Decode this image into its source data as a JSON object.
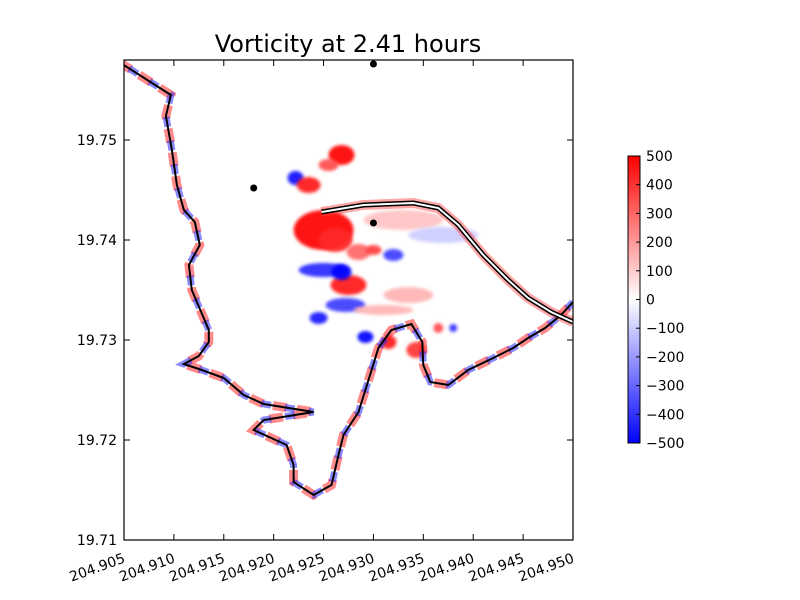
{
  "chart_data": {
    "type": "heatmap",
    "title": "Vorticity at 2.41 hours",
    "xlabel": "",
    "ylabel": "",
    "xlim": [
      204.905,
      204.95
    ],
    "ylim": [
      19.71,
      19.758
    ],
    "x_ticks": [
      "204.905",
      "204.910",
      "204.915",
      "204.920",
      "204.925",
      "204.930",
      "204.935",
      "204.940",
      "204.945",
      "204.950"
    ],
    "y_ticks": [
      "19.71",
      "19.72",
      "19.73",
      "19.74",
      "19.75"
    ],
    "x_tick_values": [
      204.905,
      204.91,
      204.915,
      204.92,
      204.925,
      204.93,
      204.935,
      204.94,
      204.945,
      204.95
    ],
    "y_tick_values": [
      19.71,
      19.72,
      19.73,
      19.74,
      19.75
    ],
    "colorbar": {
      "min": -500,
      "max": 500,
      "ticks": [
        "500",
        "400",
        "300",
        "200",
        "100",
        "0",
        "−100",
        "−200",
        "−300",
        "−400",
        "−500"
      ],
      "tick_values": [
        500,
        400,
        300,
        200,
        100,
        0,
        -100,
        -200,
        -300,
        -400,
        -500
      ],
      "colormap": [
        "#0000ff",
        "#ffffff",
        "#ff0000"
      ]
    },
    "gauge_points": [
      {
        "x": 204.93,
        "y": 19.7576
      },
      {
        "x": 204.918,
        "y": 19.7452
      },
      {
        "x": 204.93,
        "y": 19.7417
      }
    ],
    "shoreline": [
      [
        204.9045,
        19.7578
      ],
      [
        204.9097,
        19.7545
      ],
      [
        204.9092,
        19.7524
      ],
      [
        204.9098,
        19.749
      ],
      [
        204.9103,
        19.7455
      ],
      [
        204.911,
        19.743
      ],
      [
        204.9121,
        19.7418
      ],
      [
        204.9126,
        19.7395
      ],
      [
        204.9115,
        19.7375
      ],
      [
        204.9118,
        19.735
      ],
      [
        204.9135,
        19.731
      ],
      [
        204.9135,
        19.7298
      ],
      [
        204.9125,
        19.7284
      ],
      [
        204.911,
        19.7276
      ],
      [
        204.9128,
        19.727
      ],
      [
        204.915,
        19.7262
      ],
      [
        204.917,
        19.7245
      ],
      [
        204.919,
        19.7236
      ],
      [
        204.924,
        19.7228
      ],
      [
        204.919,
        19.722
      ],
      [
        204.918,
        19.721
      ],
      [
        204.9213,
        19.7195
      ],
      [
        204.922,
        19.7175
      ],
      [
        204.922,
        19.7158
      ],
      [
        204.924,
        19.7145
      ],
      [
        204.9258,
        19.7155
      ],
      [
        204.9265,
        19.7185
      ],
      [
        204.927,
        19.7205
      ],
      [
        204.9285,
        19.7228
      ],
      [
        204.9295,
        19.726
      ],
      [
        204.9305,
        19.7292
      ],
      [
        204.9318,
        19.731
      ],
      [
        204.9338,
        19.7316
      ],
      [
        204.9349,
        19.7298
      ],
      [
        204.935,
        19.7275
      ],
      [
        204.9357,
        19.7258
      ],
      [
        204.9375,
        19.7255
      ],
      [
        204.9395,
        19.727
      ],
      [
        204.942,
        19.7282
      ],
      [
        204.944,
        19.7292
      ],
      [
        204.9455,
        19.7302
      ],
      [
        204.9472,
        19.7312
      ],
      [
        204.9488,
        19.7325
      ],
      [
        204.95,
        19.7338
      ]
    ],
    "breakwater": [
      [
        204.9248,
        19.7428
      ],
      [
        204.929,
        19.7435
      ],
      [
        204.934,
        19.7437
      ],
      [
        204.9365,
        19.7432
      ],
      [
        204.9385,
        19.7415
      ],
      [
        204.941,
        19.7385
      ],
      [
        204.9435,
        19.736
      ],
      [
        204.9455,
        19.7342
      ],
      [
        204.9478,
        19.7328
      ],
      [
        204.95,
        19.7318
      ]
    ],
    "eddies": [
      {
        "x": 204.9268,
        "y": 19.7485,
        "rx": 0.0013,
        "ry": 0.001,
        "v": 500
      },
      {
        "x": 204.9255,
        "y": 19.7475,
        "rx": 0.001,
        "ry": 0.0006,
        "v": 350
      },
      {
        "x": 204.9222,
        "y": 19.7462,
        "rx": 0.0008,
        "ry": 0.0007,
        "v": -480
      },
      {
        "x": 204.9235,
        "y": 19.7455,
        "rx": 0.0012,
        "ry": 0.0008,
        "v": 450
      },
      {
        "x": 204.925,
        "y": 19.741,
        "rx": 0.003,
        "ry": 0.002,
        "v": 500
      },
      {
        "x": 204.9262,
        "y": 19.74,
        "rx": 0.0017,
        "ry": 0.0012,
        "v": 420
      },
      {
        "x": 204.9285,
        "y": 19.7388,
        "rx": 0.0012,
        "ry": 0.0008,
        "v": 300
      },
      {
        "x": 204.9275,
        "y": 19.7355,
        "rx": 0.0018,
        "ry": 0.001,
        "v": 450
      },
      {
        "x": 204.925,
        "y": 19.737,
        "rx": 0.0025,
        "ry": 0.0007,
        "v": -420
      },
      {
        "x": 204.9268,
        "y": 19.7368,
        "rx": 0.001,
        "ry": 0.0008,
        "v": -500
      },
      {
        "x": 204.93,
        "y": 19.739,
        "rx": 0.0008,
        "ry": 0.0005,
        "v": 380
      },
      {
        "x": 204.932,
        "y": 19.7385,
        "rx": 0.001,
        "ry": 0.0006,
        "v": -380
      },
      {
        "x": 204.9272,
        "y": 19.7335,
        "rx": 0.002,
        "ry": 0.0007,
        "v": -380
      },
      {
        "x": 204.9245,
        "y": 19.7322,
        "rx": 0.0009,
        "ry": 0.0006,
        "v": -450
      },
      {
        "x": 204.9292,
        "y": 19.7303,
        "rx": 0.0008,
        "ry": 0.0006,
        "v": -500
      },
      {
        "x": 204.9315,
        "y": 19.7298,
        "rx": 0.0008,
        "ry": 0.0007,
        "v": 450
      },
      {
        "x": 204.9343,
        "y": 19.729,
        "rx": 0.001,
        "ry": 0.0008,
        "v": 400
      },
      {
        "x": 204.9365,
        "y": 19.7312,
        "rx": 0.0005,
        "ry": 0.0005,
        "v": 350
      },
      {
        "x": 204.938,
        "y": 19.7312,
        "rx": 0.0004,
        "ry": 0.0004,
        "v": -400
      },
      {
        "x": 204.931,
        "y": 19.733,
        "rx": 0.003,
        "ry": 0.0005,
        "v": 150
      },
      {
        "x": 204.933,
        "y": 19.742,
        "rx": 0.004,
        "ry": 0.001,
        "v": 120
      },
      {
        "x": 204.937,
        "y": 19.7405,
        "rx": 0.0035,
        "ry": 0.0008,
        "v": -100
      },
      {
        "x": 204.9335,
        "y": 19.7345,
        "rx": 0.0025,
        "ry": 0.0008,
        "v": 150
      }
    ]
  }
}
